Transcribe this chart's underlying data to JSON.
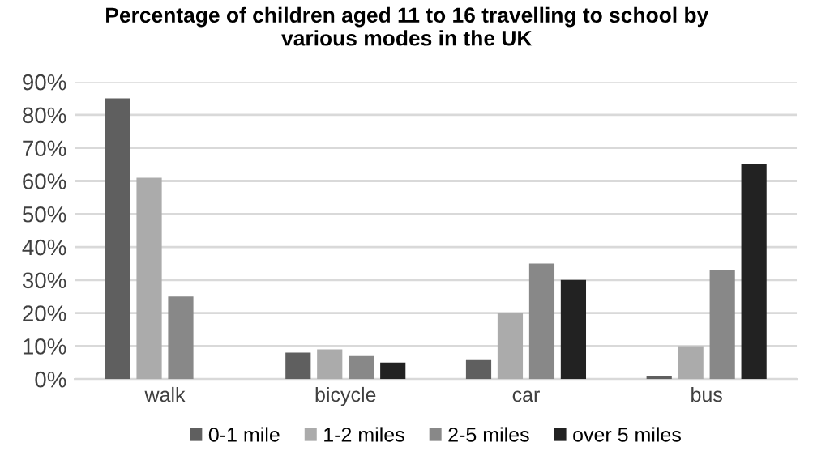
{
  "chart_data": {
    "type": "bar",
    "title": "Percentage of children aged 11 to 16 travelling to school by\nvarious modes in the UK",
    "categories": [
      "walk",
      "bicycle",
      "car",
      "bus"
    ],
    "series": [
      {
        "name": "0-1 mile",
        "color": "#5f5f5f",
        "values": [
          85,
          8,
          6,
          1
        ]
      },
      {
        "name": "1-2 miles",
        "color": "#ababab",
        "values": [
          61,
          9,
          20,
          10
        ]
      },
      {
        "name": "2-5 miles",
        "color": "#888888",
        "values": [
          25,
          7,
          35,
          33
        ]
      },
      {
        "name": "over 5 miles",
        "color": "#222222",
        "values": [
          0,
          5,
          30,
          65
        ]
      }
    ],
    "ylim": [
      0,
      90
    ],
    "yticks": [
      {
        "value": 0,
        "label": "0%"
      },
      {
        "value": 10,
        "label": "10%"
      },
      {
        "value": 20,
        "label": "20%"
      },
      {
        "value": 30,
        "label": "30%"
      },
      {
        "value": 40,
        "label": "40%"
      },
      {
        "value": 50,
        "label": "50%"
      },
      {
        "value": 60,
        "label": "60%"
      },
      {
        "value": 70,
        "label": "70%"
      },
      {
        "value": 80,
        "label": "80%"
      },
      {
        "value": 90,
        "label": "90%"
      }
    ],
    "grid": "y",
    "legend": "bottom"
  }
}
